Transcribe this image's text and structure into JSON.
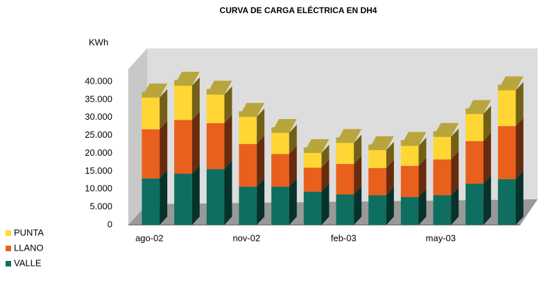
{
  "chart_data": {
    "type": "bar3d_stacked",
    "title": "CURVA DE CARGA ELÉCTRICA EN DH4",
    "ylabel": "KWh",
    "categories": [
      "ago-02",
      null,
      null,
      "nov-02",
      null,
      null,
      "feb-03",
      null,
      null,
      "may-03",
      null,
      null
    ],
    "series": [
      {
        "name": "VALLE",
        "color": "#0e6e5f",
        "values": [
          13000,
          14300,
          15600,
          10700,
          10700,
          9300,
          8500,
          8300,
          7800,
          8300,
          11500,
          12800
        ]
      },
      {
        "name": "LLANO",
        "color": "#e8601c",
        "values": [
          13700,
          15000,
          12800,
          11900,
          9100,
          6700,
          8500,
          7600,
          8700,
          10000,
          11900,
          14800
        ]
      },
      {
        "name": "PUNTA",
        "color": "#ffd633",
        "values": [
          8900,
          9600,
          8000,
          7600,
          5900,
          4100,
          5900,
          5000,
          5600,
          6300,
          7600,
          10000
        ]
      }
    ],
    "ylim": [
      0,
      40000
    ],
    "yticks": [
      0,
      {
        "value": 5000,
        "label": "5.000"
      },
      {
        "value": 10000,
        "label": "10.000"
      },
      {
        "value": 15000,
        "label": "15.000"
      },
      {
        "value": 20000,
        "label": "20.000"
      },
      {
        "value": 25000,
        "label": "25.000"
      },
      {
        "value": 30000,
        "label": "30.000"
      },
      {
        "value": 35000,
        "label": "35.000"
      },
      {
        "value": 40000,
        "label": "40.000"
      }
    ],
    "legend": "bottom-left"
  }
}
